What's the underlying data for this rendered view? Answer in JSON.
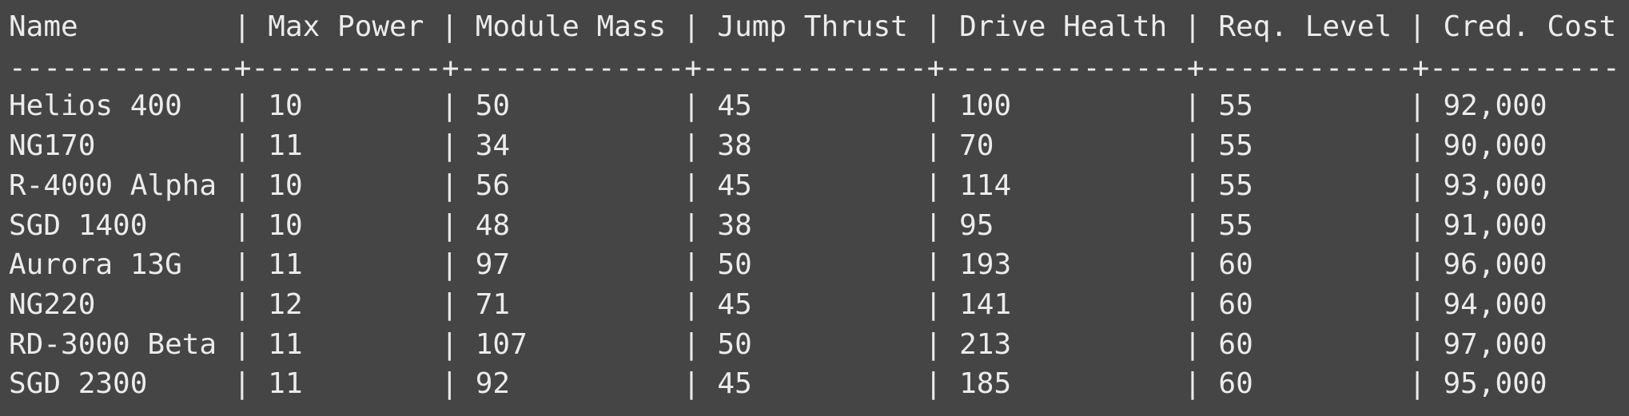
{
  "table": {
    "header": [
      "Name",
      "Max Power",
      "Module Mass",
      "Jump Thrust",
      "Drive Health",
      "Req. Level",
      "Cred. Cost"
    ],
    "column_separator": "|",
    "rule": "-------------+-----------+-------------+-------------+--------------+------------+-----------",
    "rows": [
      [
        "Helios 400",
        "10",
        "50",
        "45",
        "100",
        "55",
        "92,000"
      ],
      [
        "NG170",
        "11",
        "34",
        "38",
        "70",
        "55",
        "90,000"
      ],
      [
        "R-4000 Alpha",
        "10",
        "56",
        "45",
        "114",
        "55",
        "93,000"
      ],
      [
        "SGD 1400",
        "10",
        "48",
        "38",
        "95",
        "55",
        "91,000"
      ],
      [
        "Aurora 13G",
        "11",
        "97",
        "50",
        "193",
        "60",
        "96,000"
      ],
      [
        "NG220",
        "12",
        "71",
        "45",
        "141",
        "60",
        "94,000"
      ],
      [
        "RD-3000 Beta",
        "11",
        "107",
        "50",
        "213",
        "60",
        "97,000"
      ],
      [
        "SGD 2300",
        "11",
        "92",
        "45",
        "185",
        "60",
        "95,000"
      ]
    ]
  }
}
